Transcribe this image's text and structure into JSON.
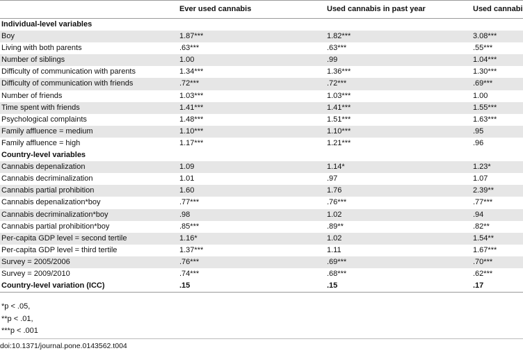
{
  "headers": [
    "",
    "Ever used cannabis",
    "Used cannabis in past year",
    "Used cannabis regularly"
  ],
  "rows": [
    {
      "label": "Individual-level variables",
      "section": true,
      "values": [
        "",
        "",
        ""
      ]
    },
    {
      "label": "Boy",
      "values": [
        "1.87***",
        "1.82***",
        "3.08***"
      ]
    },
    {
      "label": "Living with both parents",
      "values": [
        ".63***",
        ".63***",
        ".55***"
      ]
    },
    {
      "label": "Number of siblings",
      "values": [
        "1.00",
        ".99",
        "1.04***"
      ]
    },
    {
      "label": "Difficulty of communication with parents",
      "values": [
        "1.34***",
        "1.36***",
        "1.30***"
      ]
    },
    {
      "label": "Difficulty of communication with friends",
      "values": [
        ".72***",
        ".72***",
        ".69***"
      ]
    },
    {
      "label": "Number of friends",
      "values": [
        "1.03***",
        "1.03***",
        "1.00"
      ]
    },
    {
      "label": "Time spent with friends",
      "values": [
        "1.41***",
        "1.41***",
        "1.55***"
      ]
    },
    {
      "label": "Psychological complaints",
      "values": [
        "1.48***",
        "1.51***",
        "1.63***"
      ]
    },
    {
      "label": "Family affluence = medium",
      "values": [
        "1.10***",
        "1.10***",
        ".95"
      ]
    },
    {
      "label": "Family affluence = high",
      "values": [
        "1.17***",
        "1.21***",
        ".96"
      ]
    },
    {
      "label": "Country-level variables",
      "section": true,
      "values": [
        "",
        "",
        ""
      ]
    },
    {
      "label": "Cannabis depenalization",
      "values": [
        "1.09",
        "1.14*",
        "1.23*"
      ]
    },
    {
      "label": "Cannabis decriminalization",
      "values": [
        "1.01",
        ".97",
        "1.07"
      ]
    },
    {
      "label": "Cannabis partial prohibition",
      "values": [
        "1.60",
        "1.76",
        "2.39**"
      ]
    },
    {
      "label": "Cannabis depenalization*boy",
      "values": [
        ".77***",
        ".76***",
        ".77***"
      ]
    },
    {
      "label": "Cannabis decriminalization*boy",
      "values": [
        ".98",
        "1.02",
        ".94"
      ]
    },
    {
      "label": "Cannabis partial prohibition*boy",
      "values": [
        ".85***",
        ".89**",
        ".82**"
      ]
    },
    {
      "label": "Per-capita GDP level = second tertile",
      "values": [
        "1.16*",
        "1.02",
        "1.54**"
      ]
    },
    {
      "label": "Per-capita GDP level = third tertile",
      "values": [
        "1.37***",
        "1.11",
        "1.67***"
      ]
    },
    {
      "label": "Survey = 2005/2006",
      "values": [
        ".76***",
        ".69***",
        ".70***"
      ]
    },
    {
      "label": "Survey = 2009/2010",
      "values": [
        ".74***",
        ".68***",
        ".62***"
      ]
    },
    {
      "label": "Country-level variation (ICC)",
      "section": true,
      "values": [
        ".15",
        ".15",
        ".17"
      ]
    }
  ],
  "notes": [
    "*p < .05,",
    "**p < .01,",
    "***p < .001"
  ],
  "doi": "doi:10.1371/journal.pone.0143562.t004"
}
